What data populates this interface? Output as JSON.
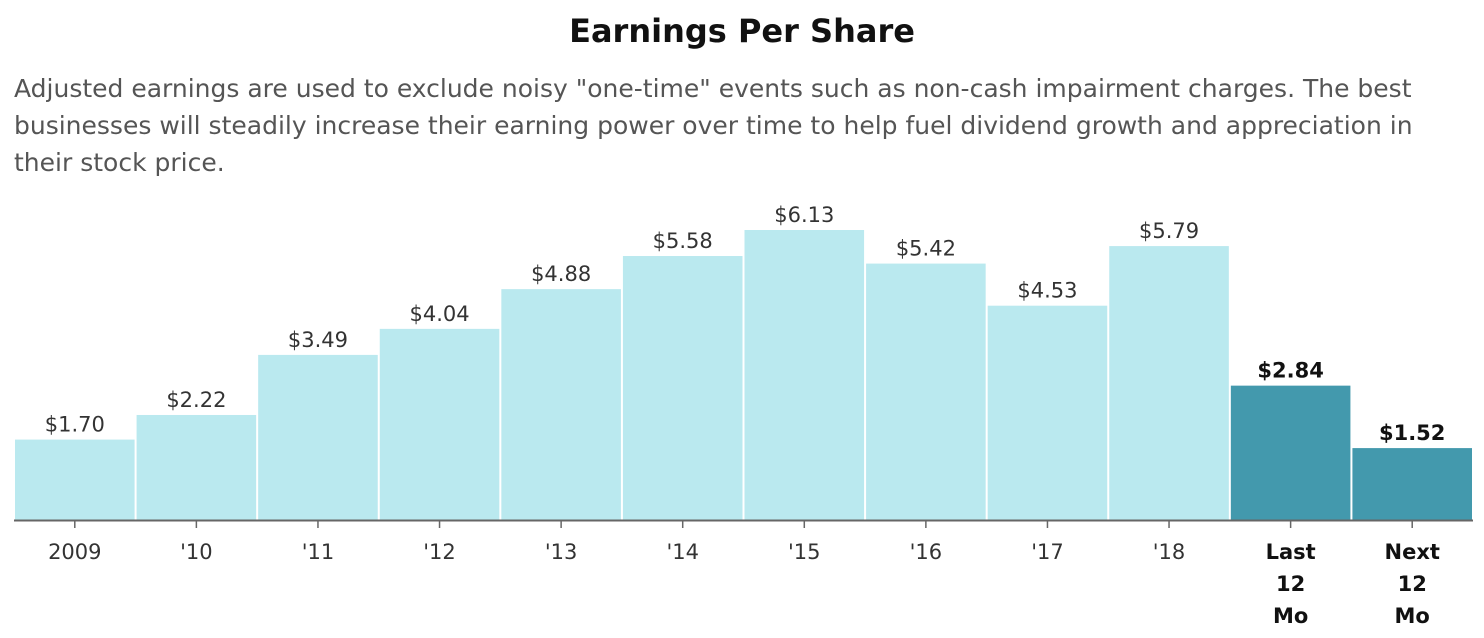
{
  "chart_data": {
    "type": "bar",
    "title": "Earnings Per Share",
    "subtitle": "Adjusted earnings are used to exclude noisy \"one-time\" events such as non-cash impairment charges. The best businesses will steadily increase their earning power over time to help fuel dividend growth and appreciation in their stock price.",
    "xlabel": "",
    "ylabel": "",
    "ylim": [
      0,
      6.13
    ],
    "grid": false,
    "legend": "none",
    "categories": [
      "2009",
      "'10",
      "'11",
      "'12",
      "'13",
      "'14",
      "'15",
      "'16",
      "'17",
      "'18",
      "Last 12 Mo",
      "Next 12 Mo"
    ],
    "values": [
      1.7,
      2.22,
      3.49,
      4.04,
      4.88,
      5.58,
      6.13,
      5.42,
      4.53,
      5.79,
      2.84,
      1.52
    ],
    "labels": [
      "$1.70",
      "$2.22",
      "$3.49",
      "$4.04",
      "$4.88",
      "$5.58",
      "$6.13",
      "$5.42",
      "$4.53",
      "$5.79",
      "$2.84",
      "$1.52"
    ],
    "highlighted": [
      false,
      false,
      false,
      false,
      false,
      false,
      false,
      false,
      false,
      false,
      true,
      true
    ],
    "colors": {
      "normal": "#bae9ef",
      "highlight": "#4399ad",
      "axis": "#666666"
    }
  }
}
